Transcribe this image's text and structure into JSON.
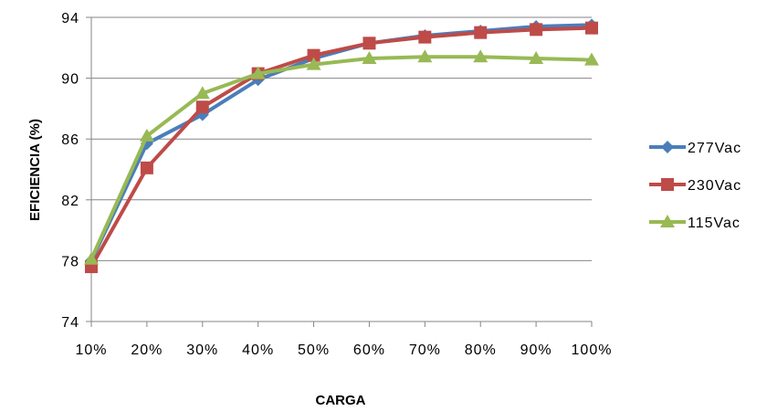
{
  "chart_data": {
    "type": "line",
    "xlabel": "CARGA",
    "ylabel": "EFICIENCIA (%)",
    "categories": [
      "10%",
      "20%",
      "30%",
      "40%",
      "50%",
      "60%",
      "70%",
      "80%",
      "90%",
      "100%"
    ],
    "ylim": [
      74,
      94
    ],
    "yticks": [
      74,
      78,
      82,
      86,
      90,
      94
    ],
    "grid": "horizontal",
    "legend_position": "right",
    "series": [
      {
        "name": "277Vac",
        "color": "#4A7EBB",
        "marker": "diamond",
        "values": [
          78.0,
          85.7,
          87.6,
          89.9,
          91.3,
          92.3,
          92.8,
          93.1,
          93.4,
          93.5
        ]
      },
      {
        "name": "230Vac",
        "color": "#BE4B48",
        "marker": "square",
        "values": [
          77.6,
          84.1,
          88.1,
          90.3,
          91.5,
          92.3,
          92.7,
          93.0,
          93.2,
          93.3
        ]
      },
      {
        "name": "115Vac",
        "color": "#98B954",
        "marker": "triangle",
        "values": [
          78.1,
          86.2,
          89.0,
          90.3,
          90.9,
          91.3,
          91.4,
          91.4,
          91.3,
          91.2
        ]
      }
    ]
  }
}
